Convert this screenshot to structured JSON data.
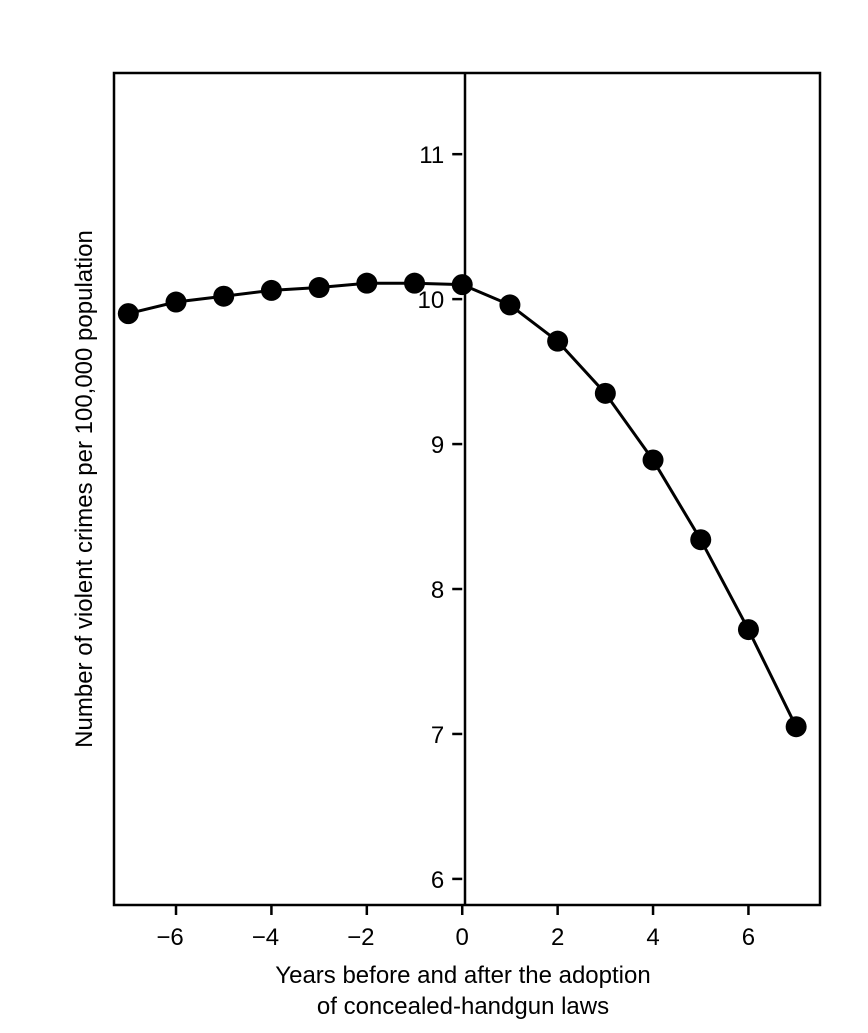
{
  "chart_data": {
    "type": "line",
    "xlabel": [
      "Years before and after the adoption",
      "of concealed-handgun laws"
    ],
    "ylabel": "Number of violent crimes per 100,000 population",
    "xlim": [
      -7.3,
      7.5
    ],
    "ylim": [
      5.82,
      11.56
    ],
    "x_ticks": [
      -6,
      -4,
      -2,
      0,
      2,
      4,
      6
    ],
    "x_tick_labels": [
      "−6",
      "−4",
      "−2",
      "0",
      "2",
      "4",
      "6"
    ],
    "y_ticks": [
      6,
      7,
      8,
      9,
      10,
      11
    ],
    "y_tick_labels": [
      "6",
      "7",
      "8",
      "9",
      "10",
      "11"
    ],
    "grid": false,
    "series": [
      {
        "x": [
          -7,
          -6,
          -5,
          -4,
          -3,
          -2,
          -1,
          0,
          1,
          2,
          3,
          4,
          5,
          6,
          7
        ],
        "y": [
          9.9,
          9.98,
          10.02,
          10.06,
          10.08,
          10.11,
          10.11,
          10.1,
          9.96,
          9.71,
          9.35,
          8.89,
          8.34,
          7.72,
          7.05
        ]
      }
    ]
  }
}
